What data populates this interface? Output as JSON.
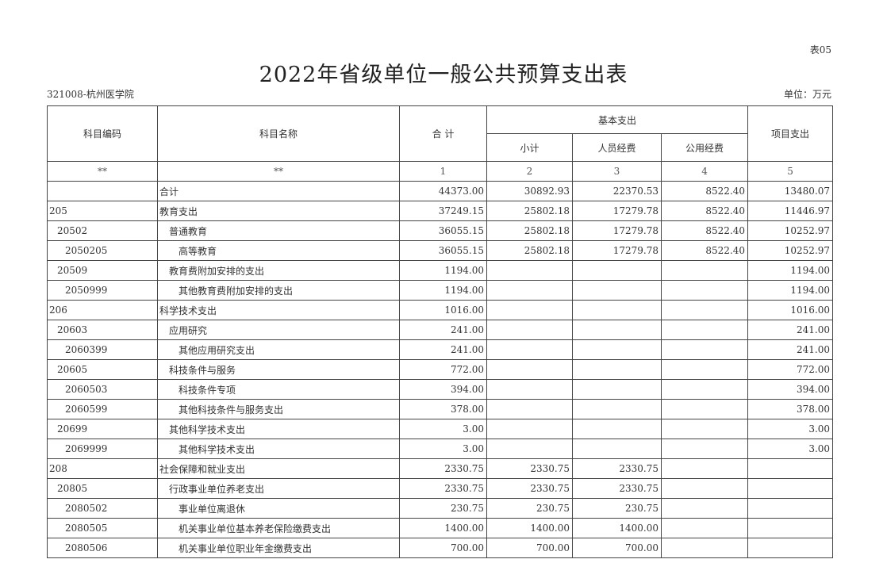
{
  "form_no": "表05",
  "title": "2022年省级单位一般公共预算支出表",
  "unit_name": "321008-杭州医学院",
  "unit_label": "单位：万元",
  "headers": {
    "code": "科目编码",
    "name": "科目名称",
    "total": "合 计",
    "basic": "基本支出",
    "subtotal": "小计",
    "personnel": "人员经费",
    "public": "公用经费",
    "project": "项目支出"
  },
  "index_row": [
    "**",
    "**",
    "1",
    "2",
    "3",
    "4",
    "5"
  ],
  "rows": [
    {
      "code": "",
      "name": "合计",
      "level": 1,
      "total": "44373.00",
      "subtotal": "30892.93",
      "personnel": "22370.53",
      "public": "8522.40",
      "project": "13480.07"
    },
    {
      "code": "205",
      "name": "教育支出",
      "level": 1,
      "total": "37249.15",
      "subtotal": "25802.18",
      "personnel": "17279.78",
      "public": "8522.40",
      "project": "11446.97"
    },
    {
      "code": "20502",
      "name": "普通教育",
      "level": 2,
      "total": "36055.15",
      "subtotal": "25802.18",
      "personnel": "17279.78",
      "public": "8522.40",
      "project": "10252.97"
    },
    {
      "code": "2050205",
      "name": "高等教育",
      "level": 3,
      "total": "36055.15",
      "subtotal": "25802.18",
      "personnel": "17279.78",
      "public": "8522.40",
      "project": "10252.97"
    },
    {
      "code": "20509",
      "name": "教育费附加安排的支出",
      "level": 2,
      "total": "1194.00",
      "subtotal": "",
      "personnel": "",
      "public": "",
      "project": "1194.00"
    },
    {
      "code": "2050999",
      "name": "其他教育费附加安排的支出",
      "level": 3,
      "total": "1194.00",
      "subtotal": "",
      "personnel": "",
      "public": "",
      "project": "1194.00"
    },
    {
      "code": "206",
      "name": "科学技术支出",
      "level": 1,
      "total": "1016.00",
      "subtotal": "",
      "personnel": "",
      "public": "",
      "project": "1016.00"
    },
    {
      "code": "20603",
      "name": "应用研究",
      "level": 2,
      "total": "241.00",
      "subtotal": "",
      "personnel": "",
      "public": "",
      "project": "241.00"
    },
    {
      "code": "2060399",
      "name": "其他应用研究支出",
      "level": 3,
      "total": "241.00",
      "subtotal": "",
      "personnel": "",
      "public": "",
      "project": "241.00"
    },
    {
      "code": "20605",
      "name": "科技条件与服务",
      "level": 2,
      "total": "772.00",
      "subtotal": "",
      "personnel": "",
      "public": "",
      "project": "772.00"
    },
    {
      "code": "2060503",
      "name": "科技条件专项",
      "level": 3,
      "total": "394.00",
      "subtotal": "",
      "personnel": "",
      "public": "",
      "project": "394.00"
    },
    {
      "code": "2060599",
      "name": "其他科技条件与服务支出",
      "level": 3,
      "total": "378.00",
      "subtotal": "",
      "personnel": "",
      "public": "",
      "project": "378.00"
    },
    {
      "code": "20699",
      "name": "其他科学技术支出",
      "level": 2,
      "total": "3.00",
      "subtotal": "",
      "personnel": "",
      "public": "",
      "project": "3.00"
    },
    {
      "code": "2069999",
      "name": "其他科学技术支出",
      "level": 3,
      "total": "3.00",
      "subtotal": "",
      "personnel": "",
      "public": "",
      "project": "3.00"
    },
    {
      "code": "208",
      "name": "社会保障和就业支出",
      "level": 1,
      "total": "2330.75",
      "subtotal": "2330.75",
      "personnel": "2330.75",
      "public": "",
      "project": ""
    },
    {
      "code": "20805",
      "name": "行政事业单位养老支出",
      "level": 2,
      "total": "2330.75",
      "subtotal": "2330.75",
      "personnel": "2330.75",
      "public": "",
      "project": ""
    },
    {
      "code": "2080502",
      "name": "事业单位离退休",
      "level": 3,
      "total": "230.75",
      "subtotal": "230.75",
      "personnel": "230.75",
      "public": "",
      "project": ""
    },
    {
      "code": "2080505",
      "name": "机关事业单位基本养老保险缴费支出",
      "level": 3,
      "total": "1400.00",
      "subtotal": "1400.00",
      "personnel": "1400.00",
      "public": "",
      "project": ""
    },
    {
      "code": "2080506",
      "name": "机关事业单位职业年金缴费支出",
      "level": 3,
      "total": "700.00",
      "subtotal": "700.00",
      "personnel": "700.00",
      "public": "",
      "project": ""
    }
  ]
}
